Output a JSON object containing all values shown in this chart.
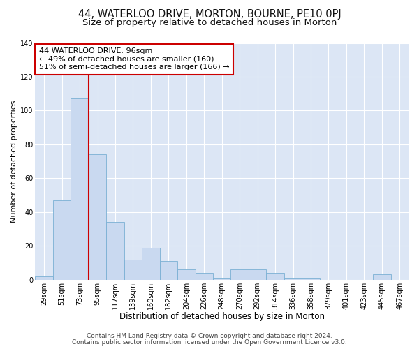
{
  "title": "44, WATERLOO DRIVE, MORTON, BOURNE, PE10 0PJ",
  "subtitle": "Size of property relative to detached houses in Morton",
  "xlabel": "Distribution of detached houses by size in Morton",
  "ylabel": "Number of detached properties",
  "bar_labels": [
    "29sqm",
    "51sqm",
    "73sqm",
    "95sqm",
    "117sqm",
    "139sqm",
    "160sqm",
    "182sqm",
    "204sqm",
    "226sqm",
    "248sqm",
    "270sqm",
    "292sqm",
    "314sqm",
    "336sqm",
    "358sqm",
    "379sqm",
    "401sqm",
    "423sqm",
    "445sqm",
    "467sqm"
  ],
  "bar_values": [
    2,
    47,
    107,
    74,
    34,
    12,
    19,
    11,
    6,
    4,
    1,
    6,
    6,
    4,
    1,
    1,
    0,
    0,
    0,
    3,
    0
  ],
  "bar_color": "#c9d9f0",
  "bar_edge_color": "#7ab0d4",
  "bar_width": 1.0,
  "vline_x_index": 3,
  "vline_color": "#cc0000",
  "annotation_title": "44 WATERLOO DRIVE: 96sqm",
  "annotation_line1": "← 49% of detached houses are smaller (160)",
  "annotation_line2": "51% of semi-detached houses are larger (166) →",
  "annotation_box_color": "#ffffff",
  "annotation_box_edge": "#cc0000",
  "ylim": [
    0,
    140
  ],
  "yticks": [
    0,
    20,
    40,
    60,
    80,
    100,
    120,
    140
  ],
  "footer1": "Contains HM Land Registry data © Crown copyright and database right 2024.",
  "footer2": "Contains public sector information licensed under the Open Government Licence v3.0.",
  "bg_color": "#ffffff",
  "plot_bg_color": "#dce6f5",
  "title_fontsize": 10.5,
  "subtitle_fontsize": 9.5,
  "xlabel_fontsize": 8.5,
  "ylabel_fontsize": 8.0,
  "tick_fontsize": 7.0,
  "annotation_fontsize": 8.0,
  "footer_fontsize": 6.5
}
